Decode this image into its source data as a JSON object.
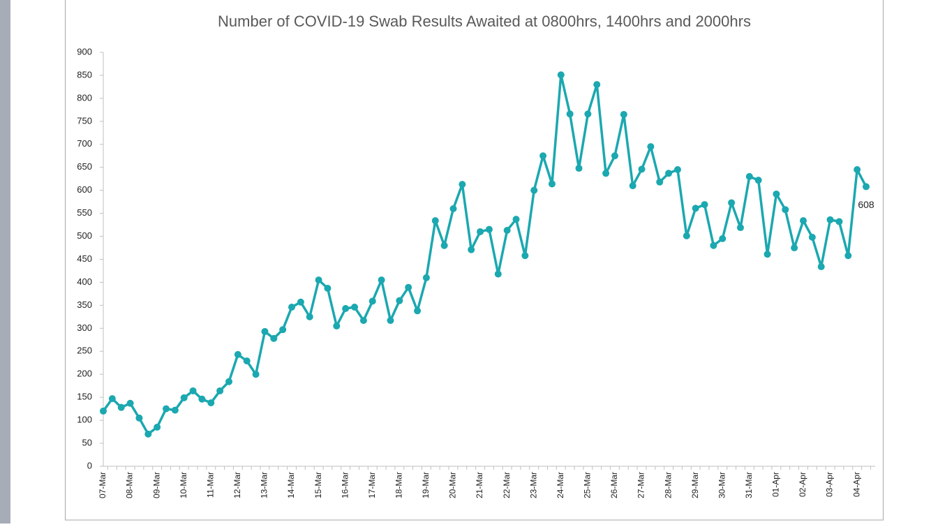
{
  "chart_data": {
    "type": "line",
    "title": "Number of COVID-19 Swab Results Awaited at 0800hrs, 1400hrs and 2000hrs",
    "categories": [
      "07-Mar",
      null,
      null,
      "08-Mar",
      null,
      null,
      "09-Mar",
      null,
      null,
      "10-Mar",
      null,
      null,
      "11-Mar",
      null,
      null,
      "12-Mar",
      null,
      null,
      "13-Mar",
      null,
      null,
      "14-Mar",
      null,
      null,
      "15-Mar",
      null,
      null,
      "16-Mar",
      null,
      null,
      "17-Mar",
      null,
      null,
      "18-Mar",
      null,
      null,
      "19-Mar",
      null,
      null,
      "20-Mar",
      null,
      null,
      "21-Mar",
      null,
      null,
      "22-Mar",
      null,
      null,
      "23-Mar",
      null,
      null,
      "24-Mar",
      null,
      null,
      "25-Mar",
      null,
      null,
      "26-Mar",
      null,
      null,
      "27-Mar",
      null,
      null,
      "28-Mar",
      null,
      null,
      "29-Mar",
      null,
      null,
      "30-Mar",
      null,
      null,
      "31-Mar",
      null,
      null,
      "01-Apr",
      null,
      null,
      "02-Apr",
      null,
      null,
      "03-Apr",
      null,
      null,
      "04-Apr",
      null
    ],
    "values": [
      120,
      147,
      128,
      137,
      105,
      70,
      85,
      125,
      122,
      149,
      164,
      146,
      138,
      164,
      184,
      243,
      229,
      200,
      293,
      278,
      297,
      346,
      357,
      325,
      405,
      387,
      305,
      343,
      346,
      317,
      359,
      405,
      317,
      360,
      389,
      338,
      410,
      534,
      480,
      560,
      613,
      471,
      510,
      515,
      418,
      513,
      537,
      458,
      600,
      675,
      614,
      851,
      766,
      648,
      766,
      830,
      637,
      675,
      765,
      610,
      646,
      695,
      618,
      637,
      645,
      501,
      561,
      569,
      480,
      495,
      573,
      519,
      630,
      622,
      461,
      592,
      558,
      475,
      534,
      498,
      434,
      536,
      532,
      458,
      645,
      608
    ],
    "value_labels": [
      null,
      null,
      null,
      null,
      null,
      null,
      null,
      null,
      null,
      null,
      null,
      null,
      null,
      null,
      null,
      null,
      null,
      null,
      null,
      null,
      null,
      null,
      null,
      null,
      null,
      null,
      null,
      null,
      null,
      null,
      null,
      null,
      null,
      null,
      null,
      null,
      null,
      null,
      null,
      null,
      null,
      null,
      null,
      null,
      null,
      null,
      null,
      null,
      null,
      null,
      null,
      null,
      null,
      null,
      null,
      null,
      null,
      null,
      null,
      null,
      null,
      null,
      null,
      null,
      null,
      null,
      null,
      null,
      null,
      null,
      null,
      null,
      null,
      null,
      null,
      null,
      null,
      null,
      null,
      null,
      null,
      null,
      null,
      null,
      null,
      "608"
    ],
    "color": "#1ba8b0",
    "ylim": [
      0,
      900
    ],
    "yticks": [
      0,
      50,
      100,
      150,
      200,
      250,
      300,
      350,
      400,
      450,
      500,
      550,
      600,
      650,
      700,
      750,
      800,
      850,
      900
    ],
    "grid": false
  }
}
